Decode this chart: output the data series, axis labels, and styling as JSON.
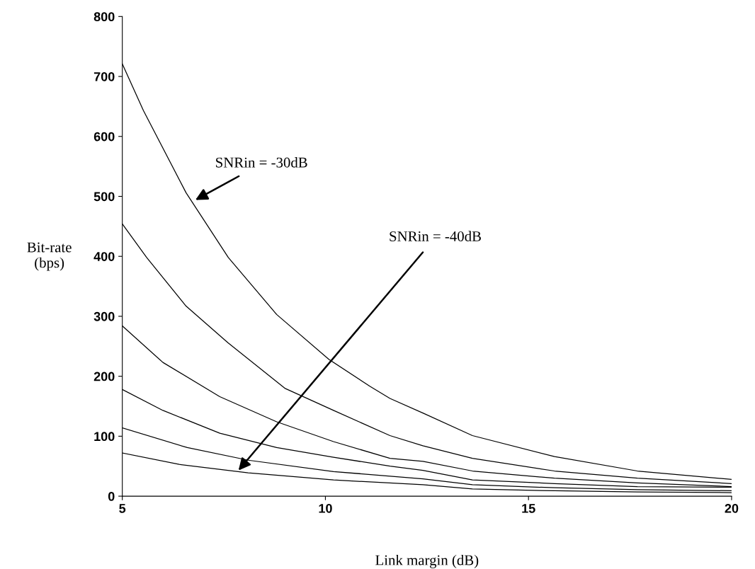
{
  "chart_data": {
    "type": "line",
    "xlabel": "Link margin (dB)",
    "ylabel": "Bit-rate\n(bps)",
    "xlim": [
      5,
      20
    ],
    "ylim": [
      0,
      800
    ],
    "xticks": [
      5,
      10,
      15,
      20
    ],
    "yticks": [
      0,
      100,
      200,
      300,
      400,
      500,
      600,
      700,
      800
    ],
    "grid": false,
    "marker": "none",
    "line_style": "solid",
    "series": [
      {
        "color": "#000000",
        "x": [
          5,
          5.52,
          6.57,
          7.61,
          8.8,
          10.09,
          11.1,
          11.59,
          12.42,
          13.62,
          15.64,
          17.68,
          20
        ],
        "values": [
          721,
          643,
          506,
          398,
          303,
          228,
          183,
          163,
          138,
          101,
          66,
          42,
          28
        ]
      },
      {
        "color": "#000000",
        "x": [
          5,
          5.6,
          6.57,
          7.6,
          9.0,
          10.2,
          11.59,
          12.4,
          13.62,
          15.64,
          17.68,
          20
        ],
        "values": [
          454,
          398,
          317,
          256,
          180,
          143,
          101,
          84,
          63,
          42,
          30,
          21
        ]
      },
      {
        "color": "#000000",
        "x": [
          5,
          6.0,
          7.4,
          8.8,
          10.2,
          11.59,
          12.4,
          13.62,
          15.64,
          17.68,
          20
        ],
        "values": [
          284,
          223,
          166,
          124,
          91,
          63,
          58,
          42,
          30,
          22,
          16
        ]
      },
      {
        "color": "#000000",
        "x": [
          5,
          6.0,
          7.4,
          8.8,
          10.2,
          11.59,
          12.4,
          13.62,
          15.64,
          17.68,
          20
        ],
        "values": [
          178,
          143,
          105,
          81,
          65,
          50,
          43,
          27,
          21,
          16,
          15
        ]
      },
      {
        "color": "#000000",
        "x": [
          5,
          6.6,
          8.1,
          10.2,
          12.4,
          13.62,
          15.64,
          17.68,
          20
        ],
        "values": [
          114,
          81,
          60,
          41,
          29,
          19,
          14,
          11,
          9
        ]
      },
      {
        "color": "#000000",
        "x": [
          5,
          6.4,
          8.1,
          10.2,
          12.4,
          13.62,
          15.64,
          17.68,
          20
        ],
        "values": [
          72,
          53,
          39,
          27,
          19,
          12,
          9,
          7,
          6
        ]
      }
    ],
    "annotations": [
      {
        "text": "SNRin = -30dB",
        "x": 6.8,
        "y": 494
      },
      {
        "text": "SNRin = -40dB",
        "x": 7.86,
        "y": 43
      }
    ]
  }
}
